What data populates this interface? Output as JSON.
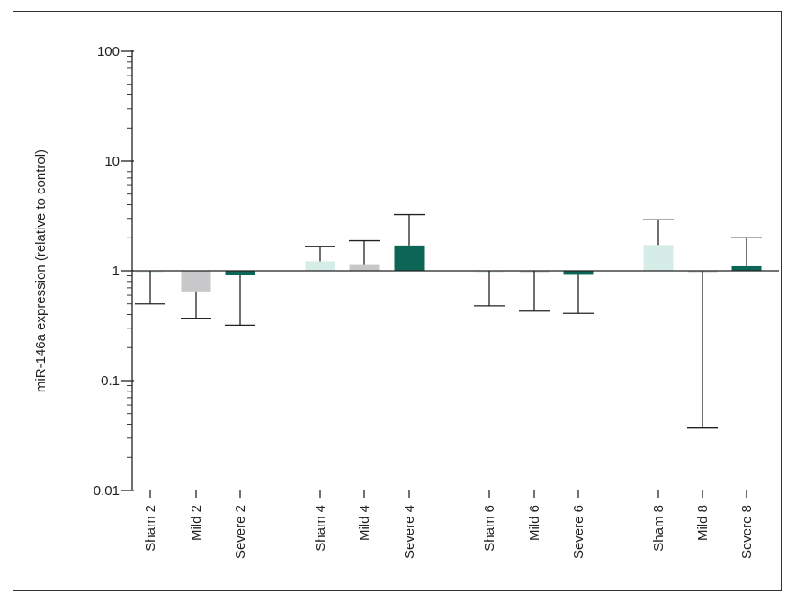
{
  "chart_data": {
    "type": "bar",
    "y_scale": "log",
    "ylabel": "miR-146a expression (relative to control)",
    "ylim": [
      0.01,
      100
    ],
    "y_ticks": [
      {
        "value": 100,
        "label": "100"
      },
      {
        "value": 10,
        "label": "10"
      },
      {
        "value": 1,
        "label": "1"
      },
      {
        "value": 0.1,
        "label": "0.1"
      },
      {
        "value": 0.01,
        "label": "0.01"
      }
    ],
    "baseline": 1,
    "categories": [
      "Sham 2",
      "Mild 2",
      "Severe 2",
      "Sham 4",
      "Mild 4",
      "Severe 4",
      "Sham 6",
      "Mild 6",
      "Severe 6",
      "Sham 8",
      "Mild 8",
      "Severe 8"
    ],
    "values": [
      0.99,
      0.65,
      0.91,
      1.22,
      1.15,
      1.7,
      1.0,
      1.0,
      0.92,
      1.72,
      1.0,
      1.1
    ],
    "error_ends": [
      0.5,
      0.37,
      0.32,
      1.67,
      1.88,
      3.25,
      0.48,
      0.43,
      0.41,
      2.92,
      0.037,
      2.0
    ],
    "group_colors": {
      "Sham": "#d6ece6",
      "Mild": "#c8c8ca",
      "Severe": "#0d6655"
    },
    "axis_color": "#222222"
  }
}
